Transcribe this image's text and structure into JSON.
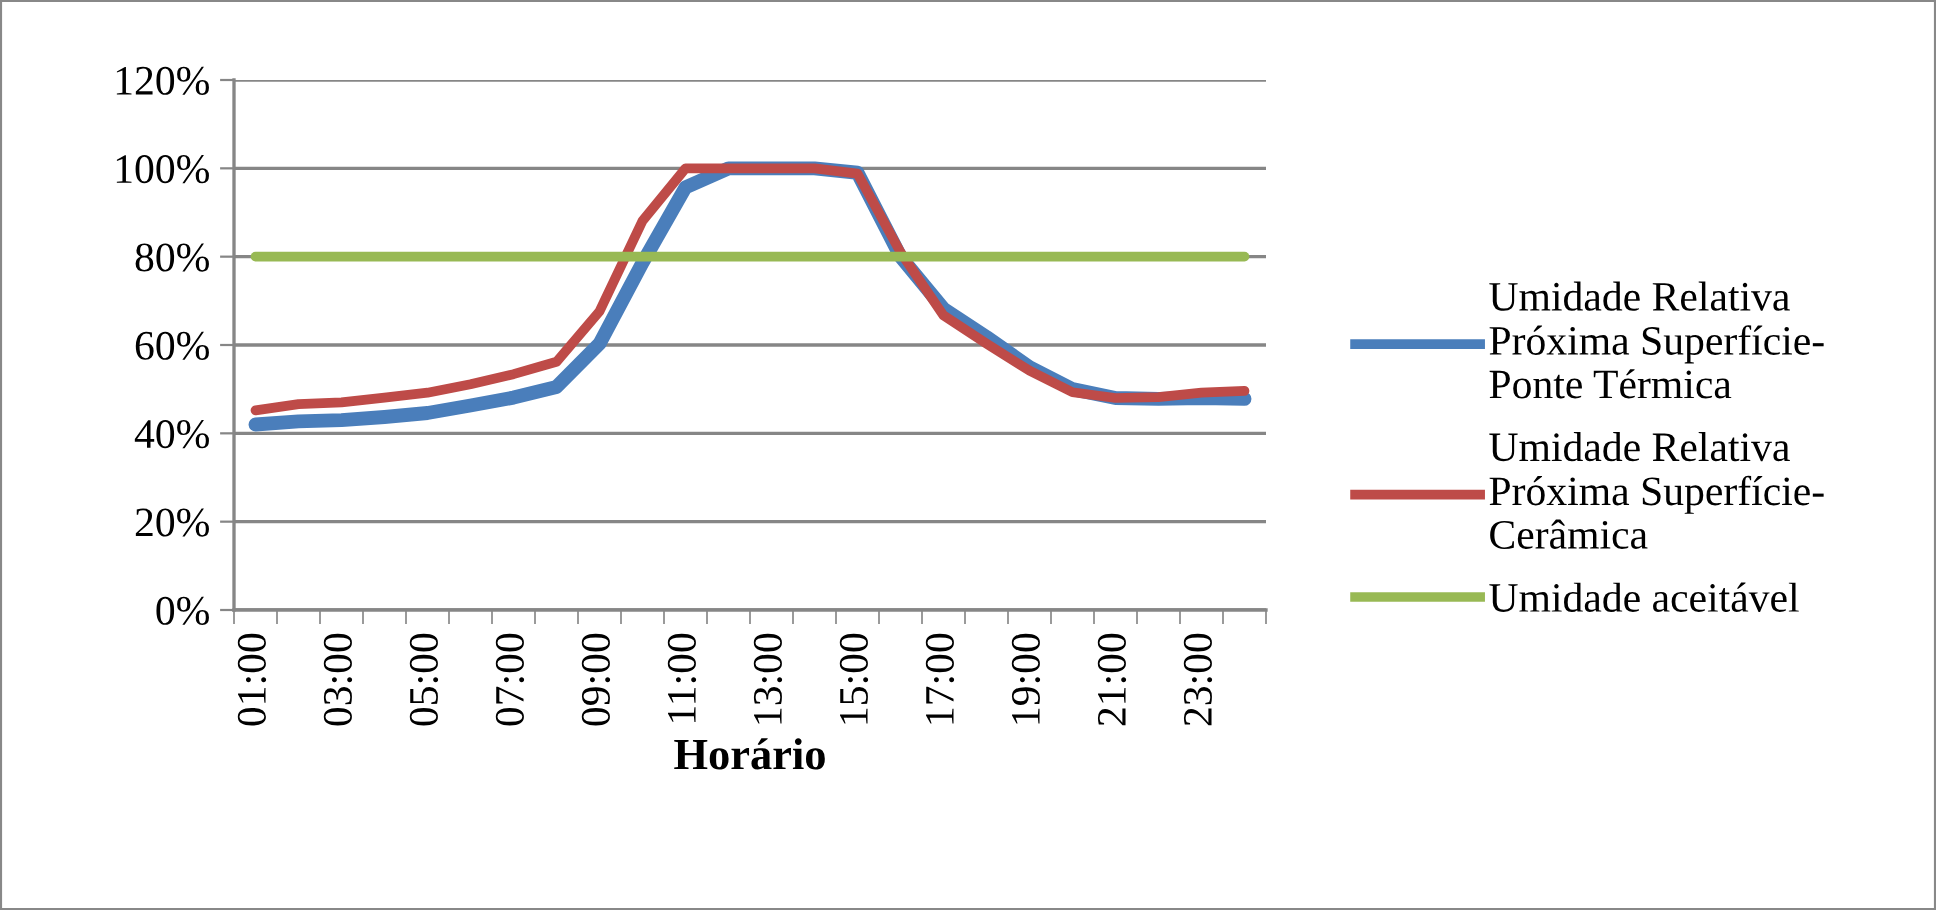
{
  "chart_data": {
    "type": "line",
    "xlabel": "Horário",
    "categories": [
      "01:00",
      null,
      "03:00",
      null,
      "05:00",
      null,
      "07:00",
      null,
      "09:00",
      null,
      "11:00",
      null,
      "13:00",
      null,
      "15:00",
      null,
      "17:00",
      null,
      "19:00",
      null,
      "21:00",
      null,
      "23:00",
      null
    ],
    "series": [
      {
        "name": "Umidade Relativa\nPróxima Superfície-\nPonte Térmica",
        "color": "#4a7ebb",
        "values": [
          42.0,
          42.7,
          43.0,
          43.7,
          44.6,
          46.3,
          48.1,
          50.5,
          60.3,
          78.6,
          95.7,
          100,
          100,
          100,
          99,
          80,
          68.2,
          61.8,
          55,
          50,
          48,
          47.8,
          48,
          47.8
        ]
      },
      {
        "name": "Umidade Relativa\nPróxima Superfície-\nCerâmica",
        "color": "#be4b48",
        "values": [
          45.2,
          46.6,
          47.0,
          48.1,
          49.2,
          51.1,
          53.4,
          56.2,
          67.6,
          88.1,
          100,
          100,
          100,
          100,
          98.8,
          81,
          66.7,
          60.3,
          54.2,
          49.3,
          48,
          48.2,
          49.2,
          49.6
        ]
      },
      {
        "name": "Umidade aceitável",
        "color": "#98b954",
        "values": [
          80,
          80,
          80,
          80,
          80,
          80,
          80,
          80,
          80,
          80,
          80,
          80,
          80,
          80,
          80,
          80,
          80,
          80,
          80,
          80,
          80,
          80,
          80,
          80
        ]
      }
    ],
    "ylim": [
      0,
      120
    ],
    "yticks": [
      {
        "value": 0,
        "label": "0%"
      },
      {
        "value": 20,
        "label": "20%"
      },
      {
        "value": 40,
        "label": "40%"
      },
      {
        "value": 60,
        "label": "60%"
      },
      {
        "value": 80,
        "label": "80%"
      },
      {
        "value": 100,
        "label": "100%"
      },
      {
        "value": 120,
        "label": "120%"
      }
    ],
    "grid": "y",
    "legend": "right",
    "marker": "none",
    "line_style": "solid"
  }
}
